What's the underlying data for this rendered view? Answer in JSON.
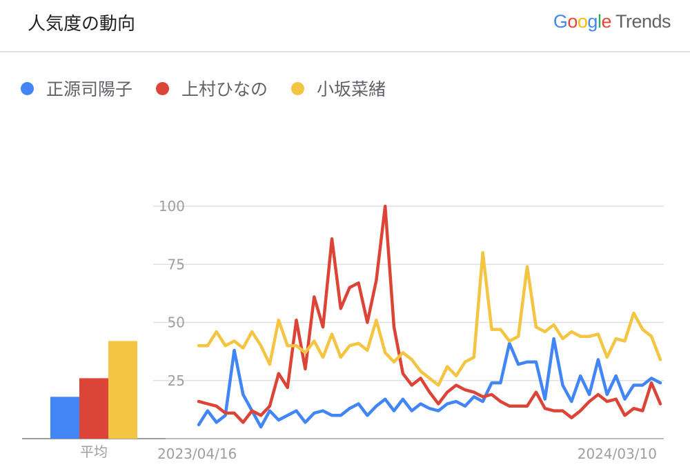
{
  "header": {
    "title": "人気度の動向",
    "brand": {
      "letters": [
        "G",
        "o",
        "o",
        "g",
        "l",
        "e"
      ],
      "trends": "Trends"
    }
  },
  "legend": [
    {
      "label": "正源司陽子",
      "color": "#4285f4"
    },
    {
      "label": "上村ひなの",
      "color": "#db4437"
    },
    {
      "label": "小坂菜緒",
      "color": "#f4c542"
    }
  ],
  "colors": {
    "blue": "#4285f4",
    "red": "#db4437",
    "yellow": "#f4c542",
    "grid": "#e0e0e0",
    "axis_text": "#9e9e9e"
  },
  "chart_data": {
    "type": "line",
    "x_start_label": "2023/04/16",
    "x_end_label": "2024/03/10",
    "ylim": [
      0,
      100
    ],
    "yticks": [
      25,
      50,
      75,
      100
    ],
    "grid": true,
    "legend_position": "top-left",
    "average_label": "平均",
    "averages": [
      {
        "name": "正源司陽子",
        "value": 18
      },
      {
        "name": "上村ひなの",
        "value": 26
      },
      {
        "name": "小坂菜緒",
        "value": 42
      }
    ],
    "series": [
      {
        "name": "正源司陽子",
        "color": "#4285f4",
        "values": [
          6,
          12,
          7,
          10,
          38,
          19,
          12,
          5,
          12,
          8,
          10,
          12,
          7,
          11,
          12,
          10,
          10,
          13,
          15,
          10,
          14,
          17,
          12,
          17,
          12,
          15,
          13,
          12,
          15,
          16,
          14,
          18,
          16,
          24,
          24,
          41,
          32,
          33,
          33,
          17,
          43,
          23,
          16,
          27,
          19,
          34,
          19,
          27,
          17,
          23,
          23,
          26,
          24
        ]
      },
      {
        "name": "上村ひなの",
        "color": "#db4437",
        "values": [
          16,
          15,
          14,
          11,
          11,
          7,
          12,
          10,
          14,
          28,
          22,
          51,
          30,
          61,
          48,
          86,
          56,
          65,
          67,
          50,
          68,
          100,
          48,
          28,
          23,
          26,
          20,
          15,
          20,
          23,
          21,
          20,
          18,
          19,
          16,
          14,
          14,
          14,
          20,
          13,
          12,
          12,
          9,
          12,
          16,
          19,
          16,
          17,
          10,
          13,
          12,
          24,
          15
        ]
      },
      {
        "name": "小坂菜緒",
        "color": "#f4c542",
        "values": [
          40,
          40,
          46,
          40,
          42,
          39,
          46,
          40,
          32,
          51,
          40,
          40,
          37,
          42,
          35,
          45,
          35,
          40,
          41,
          38,
          51,
          37,
          33,
          37,
          34,
          29,
          26,
          23,
          31,
          27,
          33,
          35,
          80,
          47,
          47,
          42,
          44,
          74,
          48,
          46,
          49,
          43,
          46,
          44,
          44,
          45,
          35,
          43,
          42,
          54,
          47,
          44,
          34
        ]
      }
    ]
  }
}
